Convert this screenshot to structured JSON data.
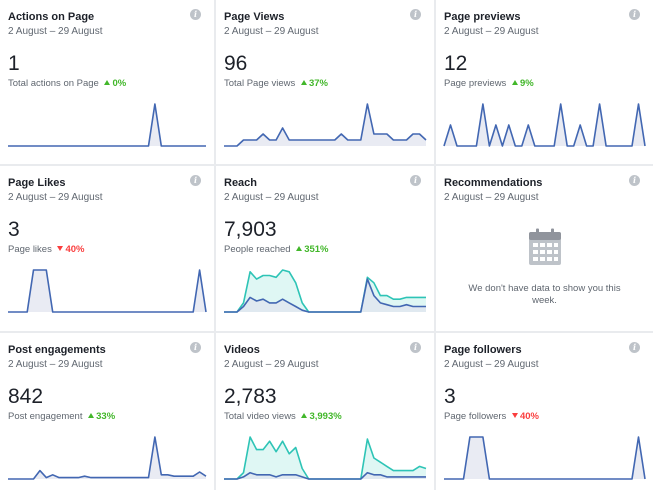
{
  "colors": {
    "line_primary": "#4267b2",
    "line_secondary": "#2ec4b6",
    "fill_primary": "#dfe3ee",
    "fill_secondary": "#d2f4ef",
    "up": "#42b72a",
    "down": "#fa3e3e"
  },
  "cards": [
    {
      "title": "Actions on Page",
      "date_range": "2 August – 29 August",
      "value": "1",
      "metric_label": "Total actions on Page",
      "change": "0%",
      "direction": "up",
      "series": [
        [
          0,
          0,
          0,
          0,
          0,
          0,
          0,
          0,
          0,
          0,
          0,
          0,
          0,
          0,
          0,
          0,
          0,
          0,
          0,
          0,
          0,
          0,
          0,
          1,
          0,
          0,
          0,
          0,
          0,
          0,
          0,
          0
        ]
      ]
    },
    {
      "title": "Page Views",
      "date_range": "2 August – 29 August",
      "value": "96",
      "metric_label": "Total Page views",
      "change": "37%",
      "direction": "up",
      "series": [
        [
          0,
          0,
          0,
          1,
          1,
          1,
          2,
          1,
          1,
          3,
          1,
          1,
          1,
          1,
          1,
          1,
          1,
          1,
          2,
          1,
          1,
          1,
          7,
          2,
          2,
          2,
          1,
          1,
          1,
          2,
          2,
          1
        ]
      ]
    },
    {
      "title": "Page previews",
      "date_range": "2 August – 29 August",
      "value": "12",
      "metric_label": "Page previews",
      "change": "9%",
      "direction": "up",
      "series": [
        [
          0,
          1,
          0,
          0,
          0,
          0,
          2,
          0,
          1,
          0,
          1,
          0,
          0,
          1,
          0,
          0,
          0,
          0,
          2,
          0,
          0,
          1,
          0,
          0,
          2,
          0,
          0,
          0,
          0,
          0,
          2,
          0
        ]
      ]
    },
    {
      "title": "Page Likes",
      "date_range": "2 August – 29 August",
      "value": "3",
      "metric_label": "Page likes",
      "change": "40%",
      "direction": "down",
      "series": [
        [
          0,
          0,
          0,
          0,
          1,
          1,
          1,
          0,
          0,
          0,
          0,
          0,
          0,
          0,
          0,
          0,
          0,
          0,
          0,
          0,
          0,
          0,
          0,
          0,
          0,
          0,
          0,
          0,
          0,
          0,
          1,
          0
        ]
      ]
    },
    {
      "title": "Reach",
      "date_range": "2 August – 29 August",
      "value": "7,903",
      "metric_label": "People reached",
      "change": "351%",
      "direction": "up",
      "series": [
        [
          0,
          0,
          0,
          0.5,
          2.2,
          1.8,
          2.0,
          2.0,
          1.9,
          2.3,
          2.2,
          1.6,
          0.5,
          0,
          0,
          0,
          0,
          0,
          0,
          0,
          0,
          0,
          1.9,
          1.6,
          0.9,
          0.9,
          0.7,
          0.7,
          0.8,
          0.8,
          0.8,
          0.8
        ],
        [
          0,
          0,
          0,
          0.3,
          0.8,
          0.6,
          0.7,
          0.5,
          0.5,
          0.7,
          0.5,
          0.3,
          0.1,
          0,
          0,
          0,
          0,
          0,
          0,
          0,
          0,
          0,
          1.8,
          0.9,
          0.5,
          0.4,
          0.3,
          0.3,
          0.4,
          0.3,
          0.3,
          0.3
        ]
      ]
    },
    {
      "title": "Recommendations",
      "date_range": "2 August – 29 August",
      "empty_message": "We don't have data to show you this week."
    },
    {
      "title": "Post engagements",
      "date_range": "2 August – 29 August",
      "value": "842",
      "metric_label": "Post engagement",
      "change": "33%",
      "direction": "up",
      "series": [
        [
          0,
          0,
          0,
          0,
          0,
          0.6,
          0.1,
          0.3,
          0.1,
          0.1,
          0.1,
          0.1,
          0.2,
          0.1,
          0.1,
          0.1,
          0.1,
          0.1,
          0.1,
          0.1,
          0.1,
          0.1,
          0.1,
          3.0,
          0.3,
          0.3,
          0.2,
          0.2,
          0.2,
          0.2,
          0.5,
          0.2
        ]
      ]
    },
    {
      "title": "Videos",
      "date_range": "2 August – 29 August",
      "value": "2,783",
      "metric_label": "Total video views",
      "change": "3,993%",
      "direction": "up",
      "series": [
        [
          0,
          0,
          0,
          0.3,
          2.0,
          1.4,
          1.4,
          1.8,
          1.3,
          1.8,
          1.2,
          1.5,
          0.5,
          0,
          0,
          0,
          0,
          0,
          0,
          0,
          0,
          0,
          1.9,
          1.0,
          0.8,
          0.6,
          0.4,
          0.4,
          0.4,
          0.4,
          0.6,
          0.5
        ],
        [
          0,
          0,
          0,
          0.1,
          0.3,
          0.2,
          0.2,
          0.2,
          0.1,
          0.2,
          0.2,
          0.2,
          0.1,
          0,
          0,
          0,
          0,
          0,
          0,
          0,
          0,
          0,
          0.3,
          0.2,
          0.2,
          0.1,
          0.1,
          0.1,
          0.1,
          0.1,
          0.1,
          0.1
        ]
      ]
    },
    {
      "title": "Page followers",
      "date_range": "2 August – 29 August",
      "value": "3",
      "metric_label": "Page followers",
      "change": "40%",
      "direction": "down",
      "series": [
        [
          0,
          0,
          0,
          0,
          1,
          1,
          1,
          0,
          0,
          0,
          0,
          0,
          0,
          0,
          0,
          0,
          0,
          0,
          0,
          0,
          0,
          0,
          0,
          0,
          0,
          0,
          0,
          0,
          0,
          0,
          1,
          0
        ]
      ]
    }
  ]
}
